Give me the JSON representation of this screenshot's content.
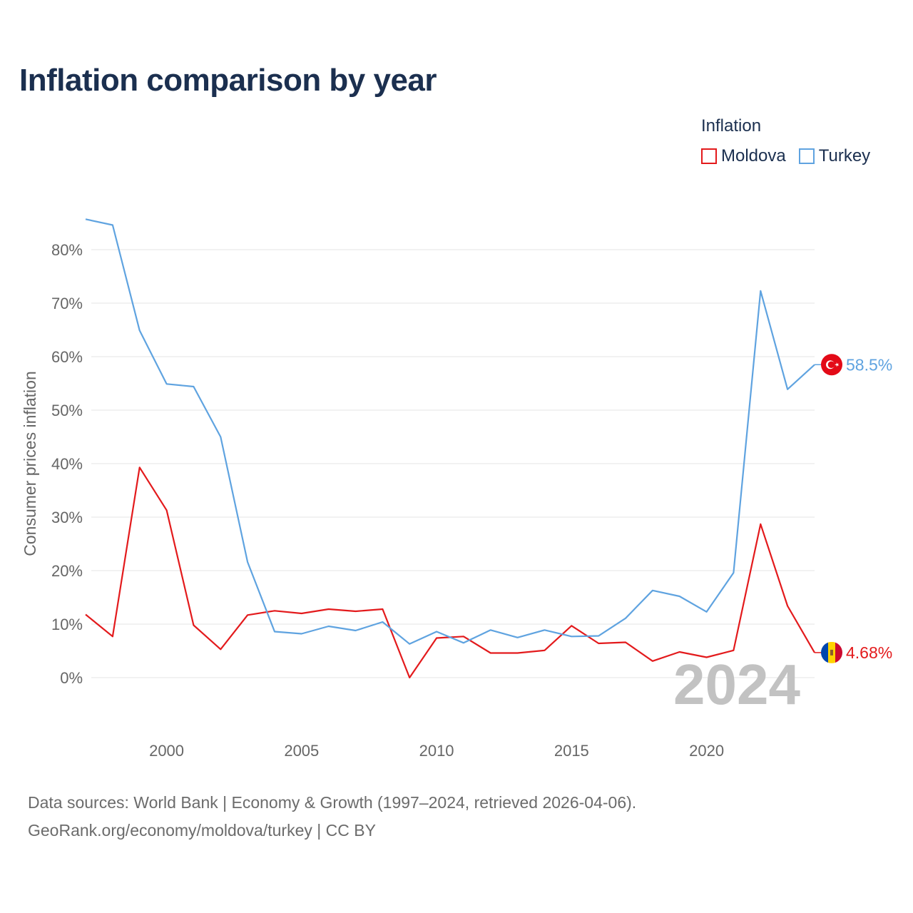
{
  "title": "Inflation comparison by year",
  "legend": {
    "title": "Inflation",
    "items": [
      {
        "label": "Moldova",
        "color": "#e31a1c"
      },
      {
        "label": "Turkey",
        "color": "#5fa3e0"
      }
    ]
  },
  "source": {
    "line1": "Data sources: World Bank | Economy & Growth (1997–2024, retrieved 2026-04-06).",
    "line2": "GeoRank.org/economy/moldova/turkey | CC BY"
  },
  "chart_data": {
    "type": "line",
    "title": "Inflation comparison by year",
    "ylabel": "Consumer prices inflation",
    "xlabel": "",
    "watermark": "2024",
    "x": [
      1997,
      1998,
      1999,
      2000,
      2001,
      2002,
      2003,
      2004,
      2005,
      2006,
      2007,
      2008,
      2009,
      2010,
      2011,
      2012,
      2013,
      2014,
      2015,
      2016,
      2017,
      2018,
      2019,
      2020,
      2021,
      2022,
      2023,
      2024
    ],
    "xlim": [
      1997,
      2024
    ],
    "ylim": [
      -8,
      88
    ],
    "x_ticks": [
      2000,
      2005,
      2010,
      2015,
      2020
    ],
    "y_ticks": [
      0,
      10,
      20,
      30,
      40,
      50,
      60,
      70,
      80
    ],
    "y_tick_labels": [
      "0%",
      "10%",
      "20%",
      "30%",
      "40%",
      "50%",
      "60%",
      "70%",
      "80%"
    ],
    "grid": true,
    "legend_position": "top-right",
    "series": [
      {
        "name": "Moldova",
        "color": "#e31a1c",
        "values": [
          11.8,
          7.7,
          39.3,
          31.3,
          9.8,
          5.3,
          11.7,
          12.5,
          12.0,
          12.8,
          12.4,
          12.8,
          0.0,
          7.4,
          7.7,
          4.6,
          4.6,
          5.1,
          9.7,
          6.4,
          6.6,
          3.1,
          4.8,
          3.8,
          5.1,
          28.7,
          13.4,
          4.68
        ],
        "end_label": "4.68%",
        "flag": "moldova-flag"
      },
      {
        "name": "Turkey",
        "color": "#5fa3e0",
        "values": [
          85.7,
          84.6,
          64.9,
          54.9,
          54.4,
          45.0,
          21.6,
          8.6,
          8.2,
          9.6,
          8.8,
          10.4,
          6.3,
          8.6,
          6.5,
          8.9,
          7.5,
          8.9,
          7.7,
          7.8,
          11.1,
          16.3,
          15.2,
          12.3,
          19.6,
          72.3,
          53.9,
          58.5
        ],
        "end_label": "58.5%",
        "flag": "turkey-flag"
      }
    ]
  }
}
